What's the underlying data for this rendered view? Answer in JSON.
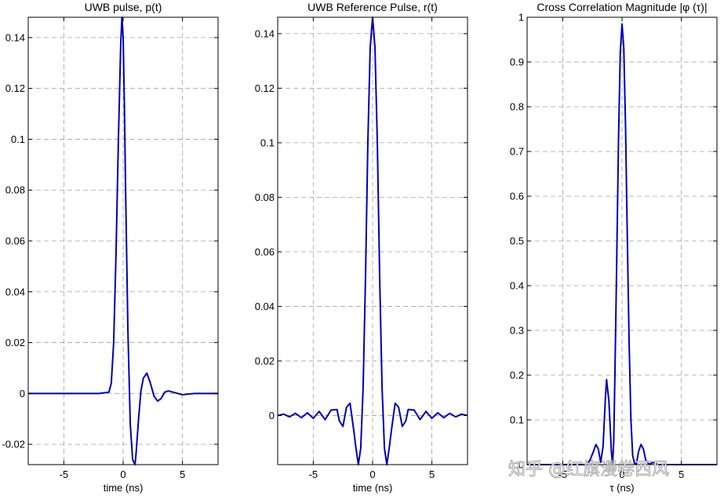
{
  "watermark": "知乎 @红旗漫卷西风",
  "chart_data": [
    {
      "type": "line",
      "title": "UWB pulse, p(t)",
      "xlabel": "time (ns)",
      "ylabel": "",
      "xlim": [
        -8,
        8
      ],
      "ylim": [
        -0.028,
        0.148
      ],
      "xticks": [
        -5,
        0,
        5
      ],
      "xtick_labels": [
        "-5",
        "0",
        "5"
      ],
      "yticks": [
        -0.02,
        0,
        0.02,
        0.04,
        0.06,
        0.08,
        0.1,
        0.12,
        0.14
      ],
      "ytick_labels": [
        "-0.02",
        "0",
        "0.02",
        "0.04",
        "0.06",
        "0.08",
        "0.1",
        "0.12",
        "0.14"
      ],
      "grid": true,
      "line_color": "#0000b4",
      "series": [
        {
          "x": [
            -8,
            -2,
            -1.2,
            -1.0,
            -0.8,
            -0.6,
            -0.4,
            -0.2,
            -0.1,
            0.0,
            0.1,
            0.2,
            0.4,
            0.6,
            0.8,
            1.0,
            1.1,
            1.3,
            1.5,
            1.7,
            2.0,
            2.3,
            2.6,
            2.9,
            3.2,
            3.5,
            3.8,
            4.2,
            4.6,
            5.0,
            6.0,
            8.0
          ],
          "y": [
            0,
            0,
            0.0005,
            0.004,
            0.02,
            0.055,
            0.1,
            0.138,
            0.148,
            0.14,
            0.115,
            0.082,
            0.025,
            -0.012,
            -0.026,
            -0.028,
            -0.023,
            -0.01,
            0.001,
            0.006,
            0.008,
            0.004,
            -0.001,
            -0.003,
            -0.002,
            0.0005,
            0.001,
            0.0005,
            0.0,
            -0.0005,
            0.0,
            0.0
          ]
        }
      ]
    },
    {
      "type": "line",
      "title": "UWB Reference Pulse, r(t)",
      "xlabel": "time (ns)",
      "ylabel": "",
      "xlim": [
        -8,
        8
      ],
      "ylim": [
        -0.018,
        0.146
      ],
      "xticks": [
        -5,
        0,
        5
      ],
      "xtick_labels": [
        "-5",
        "0",
        "5"
      ],
      "yticks": [
        0,
        0.02,
        0.04,
        0.06,
        0.08,
        0.1,
        0.12,
        0.14
      ],
      "ytick_labels": [
        "0",
        "0.02",
        "0.04",
        "0.06",
        "0.08",
        "0.1",
        "0.12",
        "0.14"
      ],
      "grid": true,
      "line_color": "#0000b4",
      "series": [
        {
          "x": [
            -8,
            -7.5,
            -7,
            -6.5,
            -6,
            -5.5,
            -5,
            -4.5,
            -4,
            -3.5,
            -3.0,
            -2.8,
            -2.5,
            -2.2,
            -1.9,
            -1.6,
            -1.4,
            -1.2,
            -1.0,
            -0.8,
            -0.6,
            -0.4,
            -0.2,
            0.0,
            0.2,
            0.4,
            0.6,
            0.8,
            1.0,
            1.2,
            1.4,
            1.6,
            1.9,
            2.2,
            2.5,
            2.8,
            3.0,
            3.5,
            4,
            4.5,
            5,
            5.5,
            6,
            6.5,
            7,
            7.5,
            8
          ],
          "y": [
            0.0,
            0.0005,
            -0.0005,
            0.0008,
            -0.0008,
            0.001,
            -0.001,
            0.0015,
            -0.0015,
            0.002,
            0.0022,
            -0.002,
            -0.004,
            0.003,
            0.0045,
            -0.005,
            -0.012,
            -0.018,
            -0.012,
            0.01,
            0.05,
            0.1,
            0.135,
            0.146,
            0.135,
            0.1,
            0.05,
            0.01,
            -0.012,
            -0.018,
            -0.012,
            -0.005,
            0.0045,
            0.003,
            -0.004,
            -0.002,
            0.0022,
            0.002,
            -0.0015,
            0.0015,
            -0.001,
            0.001,
            -0.0008,
            0.0008,
            -0.0005,
            0.0005,
            0.0
          ]
        }
      ]
    },
    {
      "type": "line",
      "title": "Cross Correlation Magnitude |φ (τ)|",
      "xlabel": "τ (ns)",
      "ylabel": "",
      "xlim": [
        -8,
        8
      ],
      "ylim": [
        0,
        1
      ],
      "xticks": [
        -5,
        0,
        5
      ],
      "xtick_labels": [
        "-5",
        "0",
        "5"
      ],
      "yticks": [
        0,
        0.1,
        0.2,
        0.3,
        0.4,
        0.5,
        0.6,
        0.7,
        0.8,
        0.9,
        1
      ],
      "ytick_labels": [
        "0",
        "0.1",
        "0.2",
        "0.3",
        "0.4",
        "0.5",
        "0.6",
        "0.7",
        "0.8",
        "0.9",
        "1"
      ],
      "grid": true,
      "line_color": "#0000b4",
      "series": [
        {
          "x": [
            -8,
            -4,
            -3.0,
            -2.7,
            -2.4,
            -2.2,
            -2.0,
            -1.8,
            -1.6,
            -1.4,
            -1.3,
            -1.1,
            -0.9,
            -0.8,
            -0.7,
            -0.6,
            -0.45,
            -0.3,
            -0.15,
            0.0,
            0.15,
            0.3,
            0.45,
            0.6,
            0.75,
            0.9,
            1.05,
            1.2,
            1.4,
            1.6,
            1.8,
            2.0,
            2.3,
            2.6,
            3.0,
            4,
            8
          ],
          "y": [
            0,
            0,
            0.0,
            0.01,
            0.03,
            0.045,
            0.035,
            0.005,
            0.04,
            0.15,
            0.19,
            0.14,
            0.03,
            0.0,
            0.05,
            0.2,
            0.45,
            0.72,
            0.92,
            0.985,
            0.93,
            0.75,
            0.5,
            0.27,
            0.1,
            0.02,
            0.003,
            0.0,
            0.03,
            0.045,
            0.035,
            0.01,
            0.0,
            0.005,
            0.0,
            0,
            0
          ]
        }
      ]
    }
  ]
}
